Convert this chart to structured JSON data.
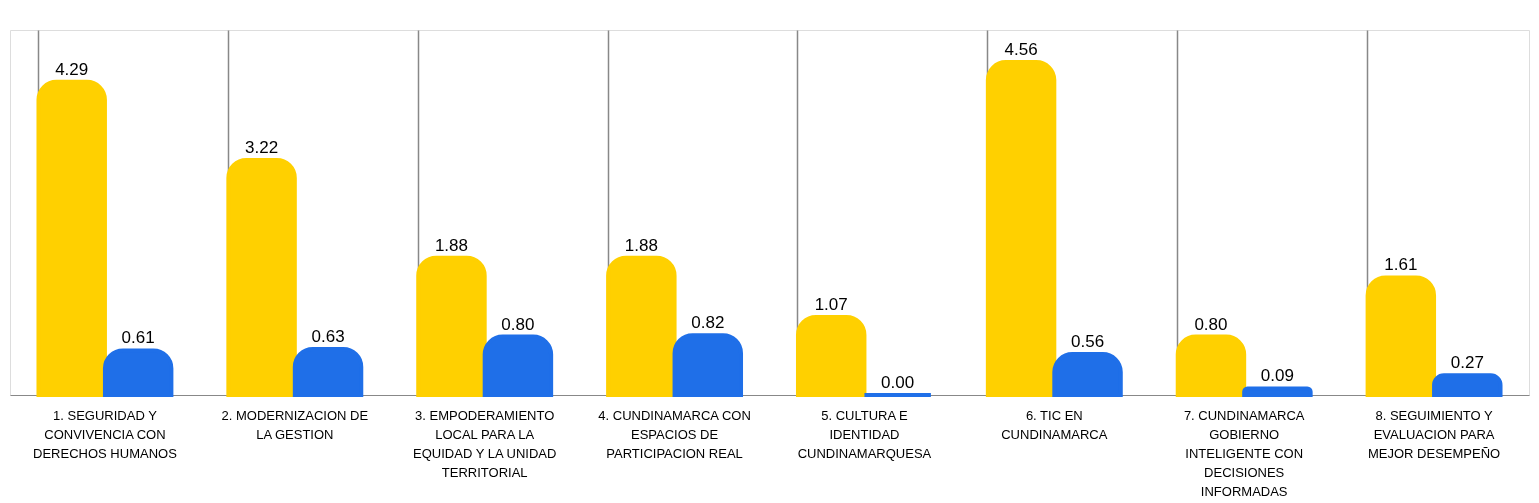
{
  "chart_data": {
    "type": "bar",
    "categories": [
      "1. SEGURIDAD Y CONVIVENCIA CON DERECHOS HUMANOS",
      "2. MODERNIZACION DE LA GESTION",
      "3. EMPODERAMIENTO LOCAL PARA LA EQUIDAD Y LA UNIDAD TERRITORIAL",
      "4. CUNDINAMARCA CON ESPACIOS DE PARTICIPACION REAL",
      "5. CULTURA E IDENTIDAD CUNDINAMARQUESA",
      "6. TIC EN CUNDINAMARCA",
      "7. CUNDINAMARCA GOBIERNO INTELIGENTE CON DECISIONES INFORMADAS",
      "8. SEGUIMIENTO Y EVALUACION PARA MEJOR DESEMPEÑO"
    ],
    "series": [
      {
        "color": "#ffd000",
        "values": [
          4.29,
          3.22,
          1.88,
          1.88,
          1.07,
          4.56,
          0.8,
          1.61
        ],
        "value_labels": [
          "4.29",
          "3.22",
          "1.88",
          "1.88",
          "1.07",
          "4.56",
          "0.80",
          "1.61"
        ]
      },
      {
        "color": "#1f6fe8",
        "values": [
          0.61,
          0.63,
          0.8,
          0.82,
          0.0,
          0.56,
          0.09,
          0.27
        ],
        "value_labels": [
          "0.61",
          "0.63",
          "0.80",
          "0.82",
          "0.00",
          "0.56",
          "0.09",
          "0.27"
        ]
      }
    ],
    "grid": "x",
    "legend": false
  }
}
